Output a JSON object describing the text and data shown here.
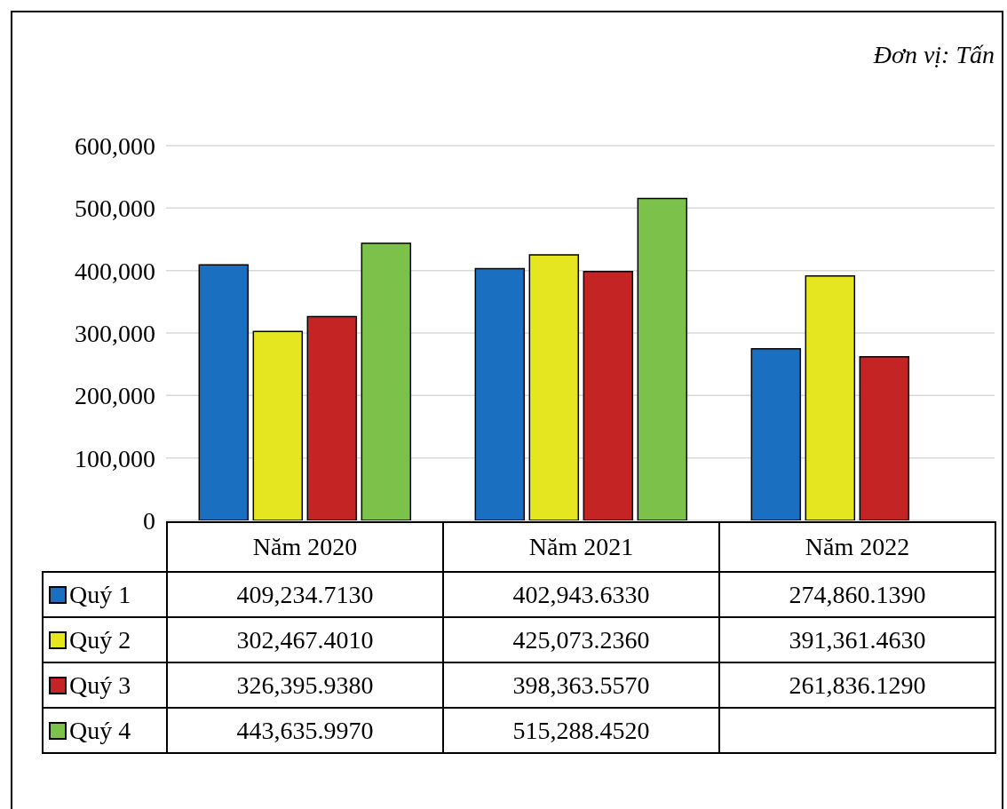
{
  "chart_data": {
    "type": "bar",
    "annotations": [
      "Đơn vị: Tấn"
    ],
    "categories": [
      "Năm 2020",
      "Năm 2021",
      "Năm 2022"
    ],
    "series": [
      {
        "name": "Quý 1",
        "color": "#1a6fc0",
        "values": [
          409234.713,
          402943.633,
          274860.139
        ],
        "value_labels": [
          "409,234.7130",
          "402,943.6330",
          "274,860.1390"
        ]
      },
      {
        "name": "Quý 2",
        "color": "#e6e620",
        "values": [
          302467.401,
          425073.236,
          391361.463
        ],
        "value_labels": [
          "302,467.4010",
          "425,073.2360",
          "391,361.4630"
        ]
      },
      {
        "name": "Quý 3",
        "color": "#c42424",
        "values": [
          326395.938,
          398363.557,
          261836.129
        ],
        "value_labels": [
          "326,395.9380",
          "398,363.5570",
          "261,836.1290"
        ]
      },
      {
        "name": "Quý 4",
        "color": "#7cc24a",
        "values": [
          443635.997,
          515288.452,
          null
        ],
        "value_labels": [
          "443,635.9970",
          "515,288.4520",
          null
        ]
      }
    ],
    "ylim": [
      0,
      600000
    ],
    "yticks": [
      0,
      {
        "value": 100000,
        "label": "100,000"
      },
      {
        "value": 200000,
        "label": "200,000"
      },
      {
        "value": 300000,
        "label": "300,000"
      },
      {
        "value": 400000,
        "label": "400,000"
      },
      {
        "value": 500000,
        "label": "500,000"
      },
      {
        "value": 600000,
        "label": "600,000"
      }
    ],
    "grid": "y",
    "legend": "bottom"
  }
}
